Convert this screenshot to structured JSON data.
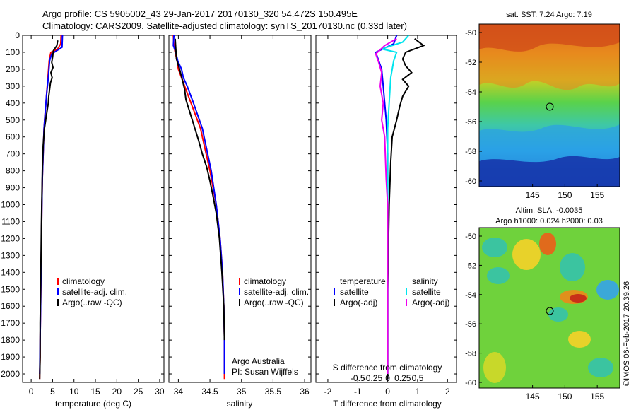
{
  "header": {
    "title_line1": "Argo profile: CS 5905002_43 29-Jan-2017 20170130_320 54.472S 150.495E",
    "title_line2": "Climatology: CARS2009. Satellite-adjusted climatology: synTS_20170130.nc (0.33d later)"
  },
  "colors": {
    "climatology": "#ff0000",
    "satellite": "#0000ff",
    "argo": "#000000",
    "satellite_s": "#00e5ee",
    "argo_s": "#ee00ee"
  },
  "chart_data": [
    {
      "id": "temperature",
      "type": "line",
      "xlabel": "temperature (deg C)",
      "ylabel": "",
      "xlim": [
        -2,
        31
      ],
      "ylim": [
        2050,
        0
      ],
      "xticks": [
        0,
        5,
        10,
        15,
        20,
        25,
        30
      ],
      "xtick_labels": [
        "0",
        "5",
        "10",
        "15",
        "20",
        "25",
        "30"
      ],
      "yticks": [
        0,
        100,
        200,
        300,
        400,
        500,
        600,
        700,
        800,
        900,
        1000,
        1100,
        1200,
        1300,
        1400,
        1500,
        1600,
        1700,
        1800,
        1900,
        2000
      ],
      "legend": [
        "climatology",
        "satellite-adj. clim.",
        "Argo(..raw -QC)"
      ],
      "series": [
        {
          "name": "climatology",
          "color": "#ff0000",
          "x": [
            7.0,
            6.9,
            6.2,
            4.6,
            4.2,
            3.9,
            3.6,
            3.3,
            3.0,
            2.8,
            2.6,
            2.5,
            2.4,
            2.3,
            2.2,
            2.1,
            2.1,
            2.0,
            2.0
          ],
          "y": [
            0,
            50,
            80,
            100,
            150,
            250,
            350,
            450,
            550,
            700,
            850,
            1000,
            1200,
            1400,
            1600,
            1800,
            1900,
            2000,
            2030
          ]
        },
        {
          "name": "satellite-adj. clim.",
          "color": "#0000ff",
          "x": [
            7.3,
            7.2,
            6.0,
            4.8,
            4.3,
            4.0,
            3.6,
            3.3,
            3.0,
            2.8,
            2.6,
            2.5,
            2.4,
            2.3,
            2.2,
            2.1,
            2.0
          ],
          "y": [
            0,
            70,
            90,
            110,
            150,
            250,
            350,
            450,
            550,
            700,
            850,
            1000,
            1200,
            1400,
            1600,
            1800,
            2000
          ]
        },
        {
          "name": "Argo(..raw -QC)",
          "color": "#000000",
          "x": [
            6.2,
            6.0,
            5.2,
            5.0,
            4.8,
            5.1,
            4.6,
            4.9,
            4.5,
            4.3,
            4.1,
            4.0,
            3.7,
            3.4,
            3.1,
            2.8,
            2.6,
            2.5,
            2.4,
            2.3,
            2.2,
            2.1,
            2.1,
            2.0
          ],
          "y": [
            30,
            60,
            90,
            130,
            160,
            190,
            220,
            250,
            280,
            320,
            360,
            400,
            450,
            500,
            550,
            650,
            800,
            950,
            1100,
            1300,
            1500,
            1700,
            1900,
            2030
          ]
        }
      ],
      "annotations": []
    },
    {
      "id": "salinity",
      "type": "line",
      "xlabel": "salinity",
      "ylabel": "",
      "xlim": [
        33.85,
        36.1
      ],
      "ylim": [
        2050,
        0
      ],
      "xticks": [
        34,
        34.5,
        35,
        35.5,
        36
      ],
      "xtick_labels": [
        "34",
        "34.5",
        "35",
        "35.5",
        "36"
      ],
      "legend": [
        "climatology",
        "satellite-adj. clim.",
        "Argo(..raw -QC)"
      ],
      "series": [
        {
          "name": "climatology",
          "color": "#ff0000",
          "x": [
            33.92,
            33.93,
            33.95,
            33.98,
            34.0,
            34.05,
            34.1,
            34.2,
            34.35,
            34.5,
            34.6,
            34.66,
            34.7,
            34.72,
            34.73,
            34.73
          ],
          "y": [
            0,
            60,
            100,
            150,
            200,
            250,
            300,
            400,
            550,
            800,
            1000,
            1200,
            1400,
            1600,
            1800,
            2030
          ]
        },
        {
          "name": "satellite-adj. clim.",
          "color": "#0000ff",
          "x": [
            33.93,
            33.92,
            33.96,
            33.99,
            34.05,
            34.08,
            34.14,
            34.24,
            34.38,
            34.52,
            34.6,
            34.66,
            34.7,
            34.72,
            34.73,
            34.73
          ],
          "y": [
            0,
            60,
            100,
            150,
            200,
            250,
            300,
            400,
            550,
            800,
            1000,
            1200,
            1400,
            1600,
            1800,
            2000
          ]
        },
        {
          "name": "Argo(..raw -QC)",
          "color": "#000000",
          "x": [
            33.95,
            33.96,
            33.97,
            34.02,
            34.06,
            34.1,
            34.12,
            34.17,
            34.22,
            34.27,
            34.32,
            34.38,
            34.45,
            34.5,
            34.55,
            34.6,
            34.65,
            34.69,
            34.72,
            34.73
          ],
          "y": [
            20,
            80,
            140,
            200,
            260,
            320,
            380,
            440,
            500,
            560,
            620,
            700,
            780,
            860,
            950,
            1050,
            1200,
            1400,
            1600,
            1800
          ]
        }
      ],
      "annotations": [
        "Argo Australia",
        "PI: Susan Wijffels"
      ]
    },
    {
      "id": "difference",
      "type": "line",
      "xlabel": "T difference from climatology",
      "xlabel2": "S difference from climatology",
      "ylabel": "",
      "xlim": [
        -2.4,
        2.3
      ],
      "ylim": [
        2050,
        0
      ],
      "xticks": [
        -2,
        -1,
        0,
        1,
        2
      ],
      "xtick_labels": [
        "-2",
        "-1",
        "0",
        "1",
        "2"
      ],
      "xticks2": [
        -1,
        -0.5,
        0,
        0.5,
        1
      ],
      "xtick_labels2": [
        "-0.5",
        "-0.25",
        "0",
        "0.25",
        "0.5"
      ],
      "legend_t_title": "temperature",
      "legend_s_title": "salinity",
      "legend": [
        "satellite",
        "Argo(-adj)",
        "satellite",
        "Argo(-adj)"
      ],
      "series": [
        {
          "name": "satellite",
          "group": "temperature",
          "color": "#0000ff",
          "x": [
            0.3,
            0.2,
            -0.4,
            -0.2,
            -0.15,
            -0.1,
            -0.05,
            0.0,
            0.0,
            0.0,
            0.0,
            0.0
          ],
          "y": [
            0,
            50,
            100,
            200,
            300,
            400,
            500,
            700,
            1000,
            1400,
            1800,
            2030
          ]
        },
        {
          "name": "Argo(-adj)",
          "group": "temperature",
          "color": "#000000",
          "x": [
            0.9,
            1.2,
            0.6,
            0.5,
            0.6,
            0.8,
            0.5,
            0.7,
            0.5,
            0.4,
            0.3,
            0.15,
            0.1,
            0.05,
            0.0,
            0.0
          ],
          "y": [
            20,
            60,
            100,
            140,
            180,
            220,
            260,
            300,
            360,
            420,
            500,
            600,
            750,
            1000,
            1500,
            2030
          ]
        },
        {
          "name": "satellite",
          "group": "salinity",
          "color": "#00e5ee",
          "x": [
            0.7,
            0.5,
            -0.2,
            0.3,
            0.2,
            0.1,
            0.05,
            0.0,
            0.0,
            0.0,
            0.0,
            0.0
          ],
          "y": [
            0,
            40,
            80,
            100,
            150,
            250,
            400,
            550,
            800,
            1200,
            1600,
            2000
          ]
        },
        {
          "name": "Argo(-adj)",
          "group": "salinity",
          "color": "#ee00ee",
          "x": [
            0.3,
            -0.1,
            -0.4,
            -0.3,
            -0.2,
            -0.25,
            -0.15,
            -0.2,
            -0.1,
            -0.08,
            -0.05,
            0.0,
            0.0,
            0.0
          ],
          "y": [
            20,
            60,
            110,
            160,
            220,
            300,
            400,
            500,
            600,
            700,
            850,
            1000,
            1500,
            2000
          ]
        }
      ]
    }
  ],
  "map_sst": {
    "title": "sat. SST: 7.24  Argo: 7.19",
    "xticks": [
      "145",
      "150",
      "155"
    ],
    "yticks": [
      "-50",
      "-52",
      "-54",
      "-56",
      "-58",
      "-60"
    ]
  },
  "map_sla": {
    "title_line1": "Altim. SLA: -0.0035",
    "title_line2": "Argo h1000: 0.024 h2000: 0.03",
    "xticks": [
      "145",
      "150",
      "155"
    ],
    "yticks": [
      "-50",
      "-52",
      "-54",
      "-56",
      "-58",
      "-60"
    ]
  },
  "credit": "©IMOS 06-Feb-2017 20:39:26"
}
